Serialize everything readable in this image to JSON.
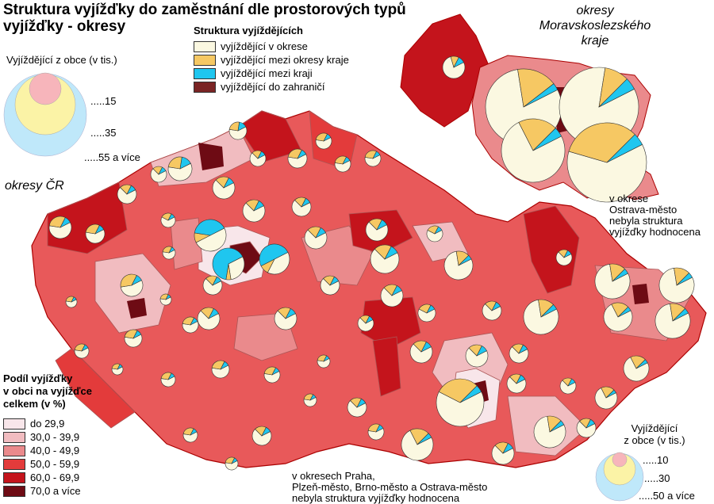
{
  "title": "Struktura vyjížďky do zaměstnání dle prostorových typů vyjížďky - okresy",
  "structure_legend": {
    "title": "Struktura vyjíždějících",
    "items": [
      {
        "label": "vyjíždějící v okrese",
        "color": "#fbf8e1"
      },
      {
        "label": "vyjíždějící mezi okresy kraje",
        "color": "#f6c863"
      },
      {
        "label": "vyjíždějící mezi kraji",
        "color": "#1fc6ef"
      },
      {
        "label": "vyjíždějící do zahraničí",
        "color": "#7a2424"
      }
    ]
  },
  "size_legend_left": {
    "title": "Vyjíždějící z obce (v tis.)",
    "labels": [
      ".....15",
      ".....35",
      ".....55 a více"
    ]
  },
  "size_legend_right": {
    "title_line1": "Vyjíždějící",
    "title_line2": "z obce (v tis.)",
    "labels": [
      ".....10",
      ".....30",
      ".....50 a více"
    ]
  },
  "share_legend": {
    "title_line1": "Podíl vyjížďky",
    "title_line2": "v obci na vyjížďce",
    "title_line3": "celkem (v %)",
    "classes": [
      {
        "label": "do 29,9",
        "color": "#f8e6ea"
      },
      {
        "label": "30,0 - 39,9",
        "color": "#f1bcc0"
      },
      {
        "label": "40,0 - 49,9",
        "color": "#ea8a8c"
      },
      {
        "label": "50,0 - 59,9",
        "color": "#e33b3b"
      },
      {
        "label": "60,0 - 69,9",
        "color": "#c4141c"
      },
      {
        "label": "70,0 a více",
        "color": "#6e0b14"
      }
    ]
  },
  "labels": {
    "cr_districts": "okresy ČR",
    "msk_line1": "okresy",
    "msk_line2": "Moravskoslezského",
    "msk_line3": "kraje",
    "ostrava_line1": "v okrese",
    "ostrava_line2": "Ostrava-město",
    "ostrava_line3": "nebyla struktura",
    "ostrava_line4": "vyjížďky hodnocena",
    "note_line1": "v okresech Praha,",
    "note_line2": "Plzeň-město, Brno-město a Ostrava-město",
    "note_line3": "nebyla struktura vyjížďky hodnocena"
  }
}
